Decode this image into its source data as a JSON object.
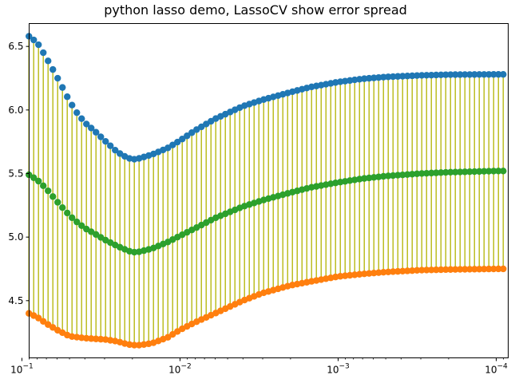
{
  "chart_data": {
    "type": "scatter",
    "title": "python lasso demo, LassoCV show error spread",
    "xlabel": "",
    "ylabel": "",
    "x_scale": "log",
    "x_inverted": true,
    "xlim": [
      0.09,
      8.4e-05
    ],
    "ylim": [
      4.05,
      6.68
    ],
    "grid": false,
    "x_ticks": [
      {
        "value": 0.1,
        "base": "10",
        "exp": "−1"
      },
      {
        "value": 0.01,
        "base": "10",
        "exp": "−2"
      },
      {
        "value": 0.001,
        "base": "10",
        "exp": "−3"
      },
      {
        "value": 0.0001,
        "base": "10",
        "exp": "−4"
      }
    ],
    "y_ticks": [
      "4.5",
      "5.0",
      "5.5",
      "6.0",
      "6.5"
    ],
    "error_bar_color": "#bcbd22",
    "n_points": 100,
    "alpha_max": 0.0903,
    "alpha_min": 9.03e-05,
    "series": [
      {
        "name": "",
        "color": "#1f77b4",
        "anchors": [
          [
            0.0903,
            6.58
          ],
          [
            0.08,
            6.53
          ],
          [
            0.07,
            6.41
          ],
          [
            0.06,
            6.26
          ],
          [
            0.05,
            6.07
          ],
          [
            0.045,
            5.98
          ],
          [
            0.04,
            5.9
          ],
          [
            0.035,
            5.84
          ],
          [
            0.03,
            5.76
          ],
          [
            0.025,
            5.67
          ],
          [
            0.022,
            5.63
          ],
          [
            0.02,
            5.61
          ],
          [
            0.018,
            5.62
          ],
          [
            0.015,
            5.65
          ],
          [
            0.012,
            5.7
          ],
          [
            0.01,
            5.76
          ],
          [
            0.008,
            5.84
          ],
          [
            0.006,
            5.93
          ],
          [
            0.004,
            6.03
          ],
          [
            0.003,
            6.08
          ],
          [
            0.002,
            6.14
          ],
          [
            0.0015,
            6.18
          ],
          [
            0.001,
            6.22
          ],
          [
            0.0007,
            6.245
          ],
          [
            0.0005,
            6.26
          ],
          [
            0.0003,
            6.272
          ],
          [
            0.0002,
            6.278
          ],
          [
            0.0001,
            6.28
          ],
          [
            9.03e-05,
            6.28
          ]
        ]
      },
      {
        "name": "",
        "color": "#2ca02c",
        "anchors": [
          [
            0.0903,
            5.49
          ],
          [
            0.08,
            5.45
          ],
          [
            0.07,
            5.38
          ],
          [
            0.06,
            5.28
          ],
          [
            0.05,
            5.17
          ],
          [
            0.045,
            5.12
          ],
          [
            0.04,
            5.07
          ],
          [
            0.035,
            5.03
          ],
          [
            0.03,
            4.98
          ],
          [
            0.025,
            4.93
          ],
          [
            0.022,
            4.9
          ],
          [
            0.02,
            4.88
          ],
          [
            0.018,
            4.885
          ],
          [
            0.015,
            4.91
          ],
          [
            0.012,
            4.96
          ],
          [
            0.01,
            5.01
          ],
          [
            0.008,
            5.07
          ],
          [
            0.006,
            5.15
          ],
          [
            0.004,
            5.24
          ],
          [
            0.003,
            5.29
          ],
          [
            0.002,
            5.35
          ],
          [
            0.0015,
            5.39
          ],
          [
            0.001,
            5.43
          ],
          [
            0.0007,
            5.46
          ],
          [
            0.0005,
            5.48
          ],
          [
            0.0003,
            5.5
          ],
          [
            0.0002,
            5.51
          ],
          [
            0.0001,
            5.52
          ],
          [
            9.03e-05,
            5.52
          ]
        ]
      },
      {
        "name": "",
        "color": "#ff7f0e",
        "anchors": [
          [
            0.0903,
            4.4
          ],
          [
            0.08,
            4.37
          ],
          [
            0.07,
            4.32
          ],
          [
            0.06,
            4.27
          ],
          [
            0.05,
            4.22
          ],
          [
            0.04,
            4.205
          ],
          [
            0.035,
            4.2
          ],
          [
            0.03,
            4.195
          ],
          [
            0.025,
            4.18
          ],
          [
            0.022,
            4.16
          ],
          [
            0.02,
            4.15
          ],
          [
            0.018,
            4.15
          ],
          [
            0.015,
            4.165
          ],
          [
            0.012,
            4.21
          ],
          [
            0.01,
            4.27
          ],
          [
            0.008,
            4.33
          ],
          [
            0.006,
            4.4
          ],
          [
            0.004,
            4.5
          ],
          [
            0.003,
            4.56
          ],
          [
            0.002,
            4.62
          ],
          [
            0.0015,
            4.65
          ],
          [
            0.001,
            4.69
          ],
          [
            0.0007,
            4.71
          ],
          [
            0.0005,
            4.725
          ],
          [
            0.0003,
            4.74
          ],
          [
            0.0002,
            4.745
          ],
          [
            0.0001,
            4.75
          ],
          [
            9.03e-05,
            4.75
          ]
        ]
      }
    ]
  }
}
